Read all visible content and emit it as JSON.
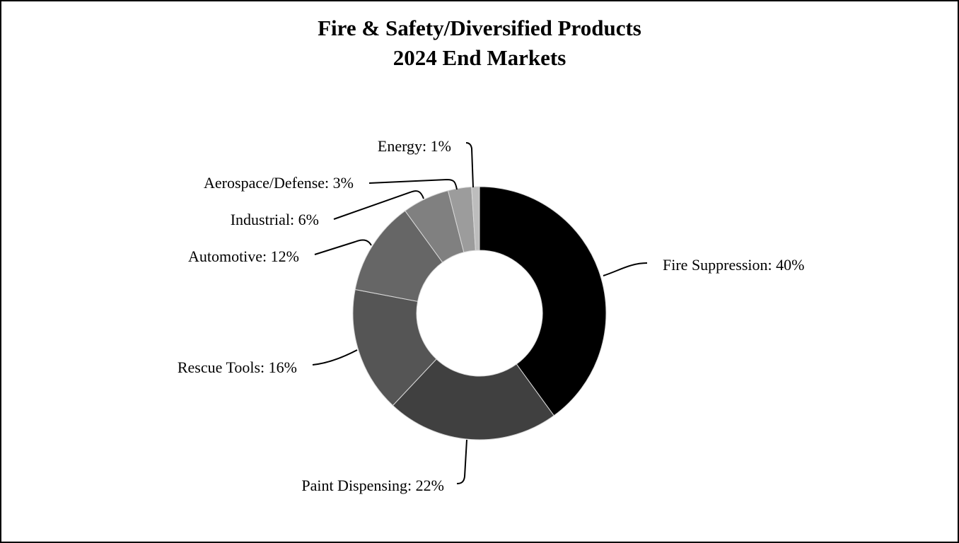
{
  "chart_data": {
    "type": "pie",
    "variant": "donut",
    "title": "Fire & Safety/Diversified Products",
    "subtitle": "2024 End Markets",
    "categories": [
      "Fire Suppression",
      "Paint Dispensing",
      "Rescue Tools",
      "Automotive",
      "Industrial",
      "Aerospace/Defense",
      "Energy"
    ],
    "values": [
      40,
      22,
      16,
      12,
      6,
      3,
      1
    ],
    "unit": "%",
    "labels": [
      "Fire Suppression: 40%",
      "Paint Dispensing: 22%",
      "Rescue Tools: 16%",
      "Automotive: 12%",
      "Industrial: 6%",
      "Aerospace/Defense: 3%",
      "Energy: 1%"
    ],
    "colors": [
      "#000000",
      "#404040",
      "#555555",
      "#666666",
      "#808080",
      "#9c9c9c",
      "#bdbdbd"
    ],
    "legend": "none"
  }
}
